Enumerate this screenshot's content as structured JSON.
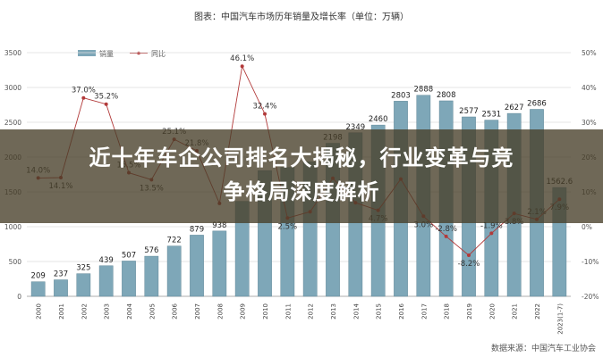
{
  "chart_data": {
    "type": "bar",
    "title": "图表：中国汽车市场历年销量及增长率（单位：万辆）",
    "categories": [
      "2000",
      "2001",
      "2002",
      "2003",
      "2004",
      "2005",
      "2006",
      "2007",
      "2008",
      "2009",
      "2010",
      "2011",
      "2012",
      "2013",
      "2014",
      "2015",
      "2016",
      "2017",
      "2018",
      "2019",
      "2020",
      "2021",
      "2022",
      "2023(1-7)"
    ],
    "series": [
      {
        "name": "销量",
        "type": "bar",
        "color": "#7ea7b8",
        "values": [
          209,
          237,
          325,
          439,
          507,
          576,
          722,
          879,
          938,
          1364,
          1806,
          1851,
          1931,
          2198,
          2349,
          2460,
          2803,
          2888,
          2808,
          2577,
          2531,
          2627,
          2686,
          1562.6
        ],
        "labels": [
          "209",
          "237",
          "325",
          "439",
          "507",
          "576",
          "722",
          "879",
          "938",
          "",
          "",
          "",
          "",
          "2198",
          "2349",
          "2460",
          "2803",
          "2888",
          "2808",
          "2577",
          "2531",
          "2627",
          "2686",
          "1562.6"
        ]
      },
      {
        "name": "同比",
        "type": "line",
        "color": "#b23a3a",
        "values": [
          14.0,
          14.1,
          37.0,
          35.2,
          15.5,
          13.5,
          25.1,
          21.8,
          6.7,
          46.1,
          32.4,
          2.5,
          4.3,
          13.9,
          6.9,
          4.7,
          13.7,
          3.0,
          -2.8,
          -8.2,
          -1.9,
          3.8,
          2.1,
          7.9
        ],
        "labels": [
          "14.0%",
          "14.1%",
          "37.0%",
          "35.2%",
          "15.5%",
          "13.5%",
          "25.1%",
          "21.8%",
          "",
          "46.1%",
          "32.4%",
          "2.5%",
          "",
          "",
          "",
          "4.7%",
          "",
          "3.0%",
          "-2.8%",
          "-8.2%",
          "-1.9%",
          "3.8%",
          "2.1%",
          "7.9%"
        ]
      }
    ],
    "ylim": [
      0,
      3500
    ],
    "yticks": [
      "0",
      "500",
      "1000",
      "1500",
      "2000",
      "2500",
      "3000",
      "3500"
    ],
    "y2lim": [
      -20,
      50
    ],
    "y2ticks": [
      "-20%",
      "-10%",
      "0%",
      "10%",
      "20%",
      "30%",
      "40%",
      "50%"
    ],
    "grid": true,
    "legend_position": "top-center"
  },
  "banner": {
    "line1": "近十年车企公司排名大揭秘，行业变革与竞",
    "line2": "争格局深度解析"
  },
  "source": "数据来源：中国汽车工业协会"
}
